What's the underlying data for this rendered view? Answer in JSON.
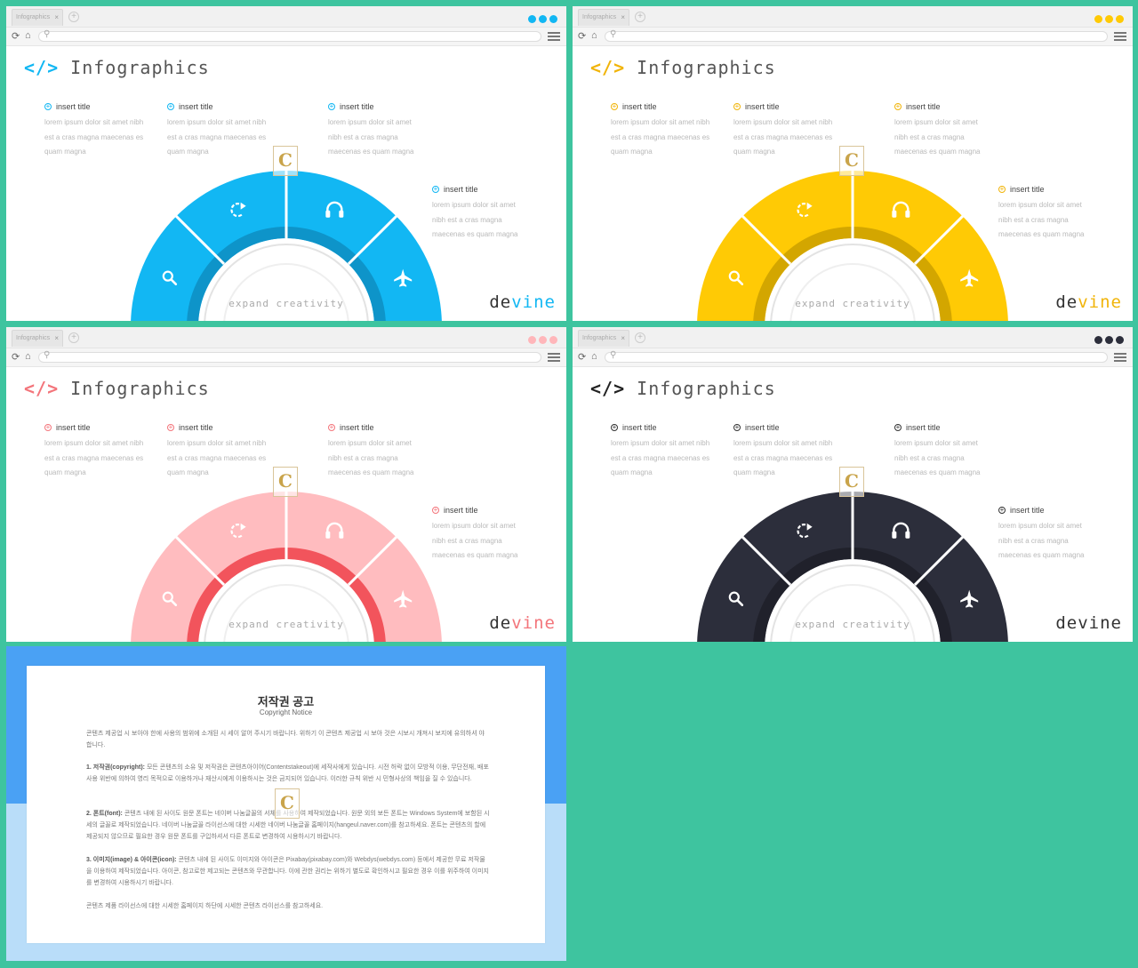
{
  "browser": {
    "tab_title": "Infographics",
    "tab_close": "×",
    "new_tab": "+",
    "reload_icon": "refresh-icon",
    "home_icon": "home-icon",
    "search_icon": "search-icon",
    "menu_icon": "hamburger-menu-icon"
  },
  "slide": {
    "title_code": "</>",
    "title": "Infographics",
    "center_text": "expand creativity",
    "brand_a": "de",
    "brand_b": "vine",
    "watermark": "C",
    "items": [
      {
        "title": "insert title",
        "lines": [
          "lorem ipsum dolor sit amet nibh",
          "est a cras magna maecenas es",
          "quam magna"
        ]
      },
      {
        "title": "insert title",
        "lines": [
          "lorem ipsum dolor sit amet nibh",
          "est a cras magna maecenas es",
          "quam magna"
        ]
      },
      {
        "title": "insert title",
        "lines": [
          "lorem ipsum dolor sit amet",
          "nibh est a cras magna",
          "maecenas es quam magna"
        ]
      },
      {
        "title": "insert title",
        "lines": [
          "lorem ipsum dolor sit amet",
          "nibh est a cras magna",
          "maecenas es quam magna"
        ]
      }
    ],
    "segment_icons": [
      "search-icon",
      "refresh-icon",
      "headphones-icon",
      "airplane-icon"
    ]
  },
  "themes": [
    {
      "name": "blue",
      "main": "#12b7f3",
      "dark": "#0e94c9",
      "dots": "#12b7f3",
      "brand_accent": "#12b7f3",
      "logo_accent": "#12b7f3"
    },
    {
      "name": "yellow",
      "main": "#ffca05",
      "dark": "#d3a600",
      "dots": "#ffca05",
      "brand_accent": "#f1b409",
      "logo_accent": "#f1b409"
    },
    {
      "name": "pink",
      "main": "#ffbcbf",
      "dark": "#f2545c",
      "dots": "#ffb6ba",
      "brand_accent": "#f3757b",
      "logo_accent": "#f3757b"
    },
    {
      "name": "navy",
      "main": "#2c2e3b",
      "dark": "#20212b",
      "dots": "#2c2e3b",
      "brand_accent": "#333333",
      "logo_accent": "#222222"
    }
  ],
  "notice": {
    "title": "저작권 공고",
    "subtitle": "Copyright Notice",
    "watermark": "C",
    "paragraphs": [
      {
        "lead": "",
        "text": "콘텐츠 제공업 시 보아야 한에 사용의 범위에 소개된 시 세이 알어 주시기 바랍니다. 위하기 이 콘텐츠 제공업 시 보아 것은 시보시 개져시 보지에 유의하셔 야 합니다."
      },
      {
        "lead": "1. 저작권(copyright): ",
        "text": "모든 콘텐츠의 소유 및 저작권은 콘텐츠아이어(Contentstakeout)에 세작사에게 있습니다. 시전 허락 없이 모방적 이용, 무단전재, 배포 사용 위반에 의하여 영리 목적으로 이용하거나 재산시에게 이용하시는 것은 금지되어 있습니다. 이러한 규칙 위반 시 민형사상의 책임을 질 수 있습니다."
      },
      {
        "lead": "2. 폰트(font): ",
        "text": "콘텐츠 내에 된 사이도 원문 폰트는 네이버 나눔글꼴의 서체를 사용하여 제작되었습니다. 원문 외의 보든 폰트는 Windows System에 보함된 시세의 글꼴로 제작되었습니다. 네이버 나눔글꼴 라이선스에 대한 시세한 네이버 나눔글꼴 홈페이지(hangeul.naver.com)를 참고하세요. 폰트는 콘텐츠의 할에 제공되지 않으므로 필요한 경우 원문 폰트를 구입하셔서 다른 폰트로 변경하여 시용하시기 바랍니다."
      },
      {
        "lead": "3. 이미지(image) & 아이콘(icon): ",
        "text": "콘텐츠 내에 된 사이도 이미지와 아이콘은 Pixabay(pixabay.com)와 Webdys(webdys.com) 등에서 제공한 무료 저작물을 이용하여 제작되었습니다. 아이콘, 참고로한 제고되는 콘텐츠와 무관합니다. 이에 관한 권리는 위하기 별도로 확인하시고 필요한 경우 이를 위주하여 이미지를 변경하여 시용하시기 바랍니다."
      },
      {
        "lead": "",
        "text": "콘텐츠 제품 라이선스에 대한 시세한 홈페이지 하단에 시세한 콘텐츠 라이선스를 참고하세요."
      }
    ]
  }
}
